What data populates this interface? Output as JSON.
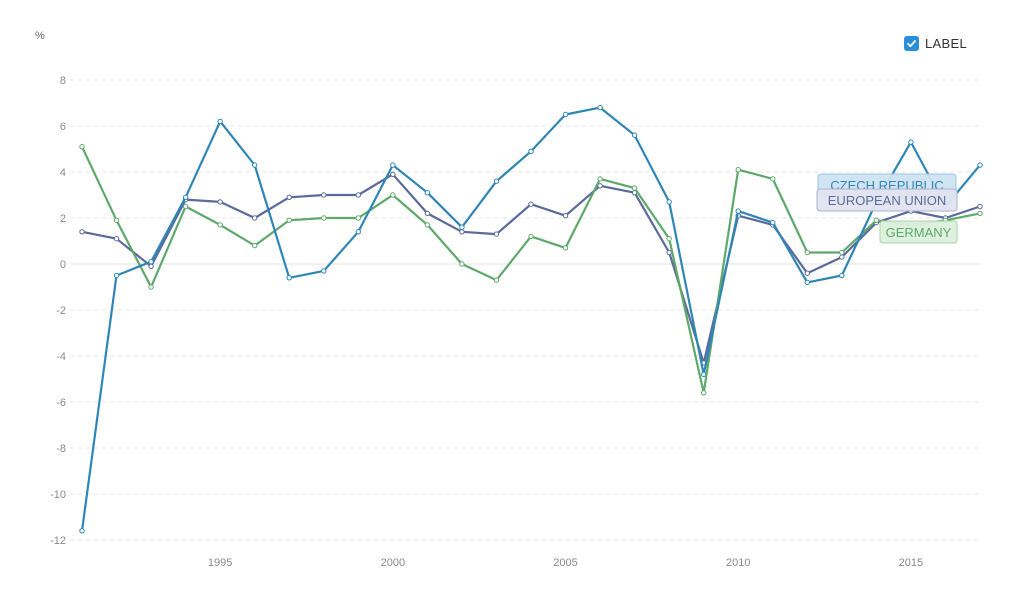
{
  "legend_toggle": {
    "label": "LABEL",
    "checked": true
  },
  "unit_label": "%",
  "colors": {
    "czech": "#2f86b6",
    "eu": "#5b6a9a",
    "germany": "#5fa86b",
    "checkbox": "#2a8fd8"
  },
  "chart_data": {
    "type": "line",
    "ylabel": "%",
    "ylim": [
      -12,
      8
    ],
    "yticks": [
      8,
      6,
      4,
      2,
      0,
      -2,
      -4,
      -6,
      -8,
      -10,
      -12
    ],
    "xlim": [
      1991,
      2017
    ],
    "xticks": [
      1995,
      2000,
      2005,
      2010,
      2015
    ],
    "grid": true,
    "x": [
      1991,
      1992,
      1993,
      1994,
      1995,
      1996,
      1997,
      1998,
      1999,
      2000,
      2001,
      2002,
      2003,
      2004,
      2005,
      2006,
      2007,
      2008,
      2009,
      2010,
      2011,
      2012,
      2013,
      2014,
      2015,
      2016,
      2017
    ],
    "series": [
      {
        "name": "CZECH REPUBLIC",
        "color": "#2f86b6",
        "values": [
          -11.6,
          -0.5,
          0.1,
          2.9,
          6.2,
          4.3,
          -0.6,
          -0.3,
          1.4,
          4.3,
          3.1,
          1.6,
          3.6,
          4.9,
          6.5,
          6.8,
          5.6,
          2.7,
          -4.8,
          2.3,
          1.8,
          -0.8,
          -0.5,
          2.7,
          5.3,
          2.5,
          4.3
        ]
      },
      {
        "name": "EUROPEAN UNION",
        "color": "#5b6a9a",
        "values": [
          1.4,
          1.1,
          -0.1,
          2.8,
          2.7,
          2.0,
          2.9,
          3.0,
          3.0,
          3.9,
          2.2,
          1.4,
          1.3,
          2.6,
          2.1,
          3.4,
          3.1,
          0.5,
          -4.3,
          2.1,
          1.7,
          -0.4,
          0.3,
          1.8,
          2.3,
          2.0,
          2.5
        ]
      },
      {
        "name": "GERMANY",
        "color": "#5fa86b",
        "values": [
          5.1,
          1.9,
          -1.0,
          2.5,
          1.7,
          0.8,
          1.9,
          2.0,
          2.0,
          3.0,
          1.7,
          0.0,
          -0.7,
          1.2,
          0.7,
          3.7,
          3.3,
          1.1,
          -5.6,
          4.1,
          3.7,
          0.5,
          0.5,
          1.9,
          1.7,
          1.9,
          2.2
        ]
      }
    ]
  }
}
